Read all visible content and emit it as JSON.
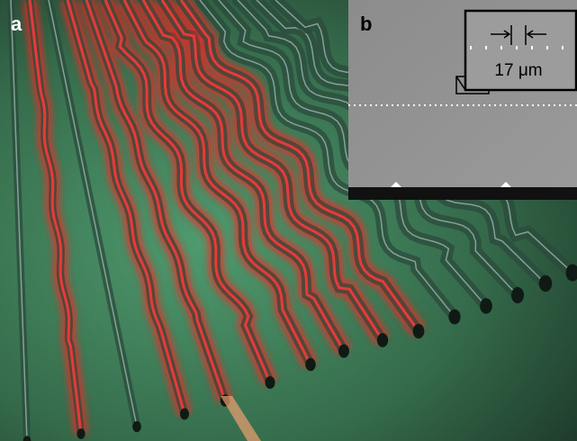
{
  "panels": [
    {
      "label": "a"
    },
    {
      "label": "b",
      "scale_bar": "17 μm"
    }
  ]
}
